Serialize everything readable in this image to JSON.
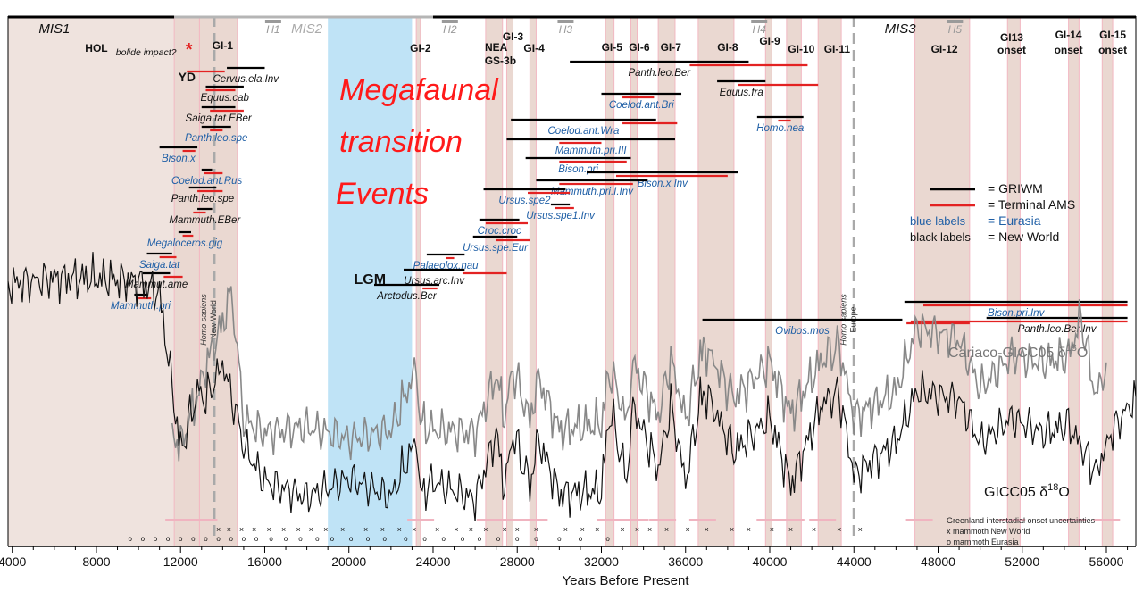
{
  "chart_data": {
    "type": "line",
    "xlabel": "Years Before Present",
    "xlim": [
      3800,
      57400
    ],
    "x_ticks": [
      4000,
      8000,
      12000,
      16000,
      20000,
      24000,
      28000,
      32000,
      36000,
      40000,
      44000,
      48000,
      52000,
      56000
    ],
    "mis_labels": [
      {
        "label": "MIS1",
        "x": 6000
      },
      {
        "label": "MIS2",
        "x": 18000
      },
      {
        "label": "MIS3",
        "x": 46200
      }
    ],
    "mis_boundaries": [
      11700,
      24000
    ],
    "heinrich_events": [
      {
        "label": "H1",
        "x": 16400
      },
      {
        "label": "H2",
        "x": 24800
      },
      {
        "label": "H3",
        "x": 30300
      },
      {
        "label": "H4",
        "x": 39500
      },
      {
        "label": "H5",
        "x": 48800
      }
    ],
    "climate_events": [
      {
        "label": "HOL",
        "x": 8000
      },
      {
        "label": "YD",
        "x": 12300
      },
      {
        "label": "GI-1",
        "x": 14000
      },
      {
        "label": "GI-2",
        "x": 23400
      },
      {
        "label": "NEA",
        "x": 27000
      },
      {
        "label": "GS-3b",
        "x": 27200
      },
      {
        "label": "GI-3",
        "x": 27800
      },
      {
        "label": "GI-4",
        "x": 28800
      },
      {
        "label": "GI-5",
        "x": 32500
      },
      {
        "label": "GI-6",
        "x": 33800
      },
      {
        "label": "GI-7",
        "x": 35300
      },
      {
        "label": "GI-8",
        "x": 38000
      },
      {
        "label": "GI-9",
        "x": 40000
      },
      {
        "label": "GI-10",
        "x": 41500
      },
      {
        "label": "GI-11",
        "x": 43200
      },
      {
        "label": "GI-12",
        "x": 48300
      },
      {
        "label": "GI13",
        "x": 51500
      },
      {
        "label": "onset",
        "x": 51500
      },
      {
        "label": "GI-14",
        "x": 54200
      },
      {
        "label": "onset",
        "x": 54200
      },
      {
        "label": "GI-15",
        "x": 56300
      },
      {
        "label": "onset",
        "x": 56300
      }
    ],
    "interstadials": [
      [
        11700,
        12900
      ],
      [
        12900,
        14700
      ],
      [
        23200,
        23400
      ],
      [
        26500,
        27300
      ],
      [
        27500,
        27800
      ],
      [
        28600,
        28900
      ],
      [
        32200,
        32600
      ],
      [
        33400,
        33700
      ],
      [
        34700,
        35500
      ],
      [
        36600,
        38300
      ],
      [
        39800,
        40100
      ],
      [
        40800,
        41500
      ],
      [
        42300,
        43400
      ],
      [
        46900,
        49500
      ],
      [
        51300,
        51900
      ],
      [
        54200,
        54700
      ],
      [
        55800,
        56300
      ]
    ],
    "lgm": {
      "label": "LGM",
      "range": [
        19000,
        23000
      ]
    },
    "homo_sapiens": [
      {
        "label": "Homo sapiens",
        "sublabel": "New World",
        "x": 13600
      },
      {
        "label": "Homo sapiens",
        "sublabel": "Europe",
        "x": 44000
      }
    ],
    "bolide_label": "bolide impact?",
    "overlay_text": [
      "Megafaunal",
      "transition",
      "Events"
    ],
    "legend": [
      {
        "key": "=",
        "label": "GRIWM",
        "color": "#000000"
      },
      {
        "key": "=",
        "label": "Terminal AMS",
        "color": "#e32222"
      },
      {
        "key": "blue labels",
        "label": "= Eurasia",
        "color": "#1f5fa6"
      },
      {
        "key": "black labels",
        "label": "= New World",
        "color": "#111111"
      }
    ],
    "taxa": [
      {
        "name": "Cervus.ela.Inv",
        "region": "New World",
        "griwm": [
          14200,
          16000
        ],
        "ams": [
          12300,
          14100
        ]
      },
      {
        "name": "Equus.cab",
        "region": "New World",
        "griwm": [
          13200,
          15000
        ],
        "ams": [
          13200,
          14600
        ]
      },
      {
        "name": "Saiga.tat.EBer",
        "region": "New World",
        "griwm": [
          13000,
          14600
        ],
        "ams": [
          13400,
          15000
        ]
      },
      {
        "name": "Panth.leo.spe",
        "region": "Eurasia",
        "griwm": [
          13000,
          14400
        ],
        "ams": [
          13400,
          14000
        ]
      },
      {
        "name": "Bison.x",
        "region": "Eurasia",
        "griwm": [
          11000,
          12800
        ],
        "ams": [
          12100,
          12700
        ]
      },
      {
        "name": "Coelod.ant.Rus",
        "region": "Eurasia",
        "griwm": [
          13000,
          13500
        ],
        "ams": [
          13100,
          14000
        ]
      },
      {
        "name": "Panth.leo.spe",
        "region": "New World",
        "griwm": [
          12400,
          13700
        ],
        "ams": [
          12800,
          14000
        ]
      },
      {
        "name": "Mammuth.EBer",
        "region": "New World",
        "griwm": [
          12800,
          13500
        ],
        "ams": [
          12600,
          13200
        ]
      },
      {
        "name": "Megaloceros.gig",
        "region": "Eurasia",
        "griwm": [
          11900,
          12500
        ],
        "ams": [
          12100,
          12600
        ]
      },
      {
        "name": "Saiga.tat",
        "region": "Eurasia",
        "griwm": [
          10400,
          11600
        ],
        "ams": [
          11000,
          11800
        ]
      },
      {
        "name": "Mammut.ame",
        "region": "New World",
        "griwm": [
          10200,
          11500
        ],
        "ams": [
          11200,
          12100
        ]
      },
      {
        "name": "Mammuth.pri",
        "region": "Eurasia",
        "griwm": [
          9800,
          10400
        ],
        "ams": [
          10000,
          10600
        ]
      },
      {
        "name": "Ovibos.mos",
        "region": "Eurasia",
        "griwm": [
          36800,
          46300
        ],
        "ams": [
          46500,
          49500
        ]
      },
      {
        "name": "Panth.leo.Ber",
        "region": "New World",
        "griwm": [
          30500,
          39000
        ],
        "ams": [
          36200,
          41800
        ]
      },
      {
        "name": "Equus.fra",
        "region": "New World",
        "griwm": [
          37500,
          39800
        ],
        "ams": [
          38500,
          42300
        ]
      },
      {
        "name": "Coelod.ant.Bri",
        "region": "Eurasia",
        "griwm": [
          32000,
          35800
        ],
        "ams": [
          33000,
          34500
        ]
      },
      {
        "name": "Homo.nea",
        "region": "Eurasia",
        "griwm": [
          39400,
          41600
        ],
        "ams": [
          40400,
          41000
        ]
      },
      {
        "name": "Coelod.ant.Wra",
        "region": "Eurasia",
        "griwm": [
          27700,
          34600
        ],
        "ams": [
          33000,
          35600
        ]
      },
      {
        "name": "Mammuth.pri.III",
        "region": "Eurasia",
        "griwm": [
          27500,
          35500
        ],
        "ams": [
          30000,
          32000
        ]
      },
      {
        "name": "Bison.pri",
        "region": "Eurasia",
        "griwm": [
          28400,
          33400
        ],
        "ams": [
          30000,
          33200
        ]
      },
      {
        "name": "Bison.x.Inv",
        "region": "Eurasia",
        "griwm": [
          31300,
          38500
        ],
        "ams": [
          32700,
          38000
        ]
      },
      {
        "name": "Mammuth.pri.I.Inv",
        "region": "Eurasia",
        "griwm": [
          28900,
          34200
        ],
        "ams": [
          30000,
          33500
        ]
      },
      {
        "name": "Ursus.spe2",
        "region": "Eurasia",
        "griwm": [
          26400,
          30300
        ],
        "ams": [
          28500,
          30500
        ]
      },
      {
        "name": "Ursus.spe1.Inv",
        "region": "Eurasia",
        "griwm": [
          29600,
          30500
        ],
        "ams": [
          29800,
          30700
        ]
      },
      {
        "name": "Croc.croc",
        "region": "Eurasia",
        "griwm": [
          26200,
          28100
        ],
        "ams": [
          26500,
          28500
        ]
      },
      {
        "name": "Ursus.spe.Eur",
        "region": "Eurasia",
        "griwm": [
          25900,
          28000
        ],
        "ams": [
          27000,
          28600
        ]
      },
      {
        "name": "Palaeolox.nau",
        "region": "Eurasia",
        "griwm": [
          23700,
          25500
        ],
        "ams": [
          24600,
          25000
        ]
      },
      {
        "name": "Ursus.arc.Inv",
        "region": "New World",
        "griwm": [
          22600,
          25500
        ],
        "ams": [
          25400,
          27500
        ]
      },
      {
        "name": "Arctodus.Ber",
        "region": "New World",
        "griwm": [
          21200,
          24300
        ],
        "ams": [
          23500,
          24200
        ]
      },
      {
        "name": "Bison.pri.Inv",
        "region": "Eurasia",
        "griwm": [
          46400,
          57000
        ],
        "ams": [
          47300,
          57000
        ]
      },
      {
        "name": "Panth.leo.Ber.Inv",
        "region": "New World",
        "griwm": [
          50300,
          57000
        ],
        "ams": [
          46700,
          57000
        ]
      }
    ],
    "series": [
      {
        "name": "Cariaco-GICC05 δ18O",
        "color": "#888888",
        "x": [
          11600,
          12000,
          12400,
          12800,
          13200,
          13600,
          14000,
          14400,
          14700,
          15000,
          16000,
          18000,
          20000,
          22000,
          23200,
          23400,
          24000,
          26000,
          27000,
          27400,
          27800,
          28600,
          29000,
          30000,
          32000,
          32400,
          33200,
          33500,
          34700,
          35300,
          36000,
          36700,
          37000,
          38300,
          40000,
          41000,
          42500,
          43300,
          44000,
          46000,
          47000,
          49000,
          50000,
          51500,
          53000,
          54200,
          54800,
          55500,
          56000
        ],
        "value": [
          -40.6,
          -41.0,
          -40.2,
          -39.5,
          -38.5,
          -37.8,
          -37.2,
          -36.2,
          -38.0,
          -40.2,
          -40.6,
          -40.4,
          -40.8,
          -40.5,
          -38.6,
          -40.3,
          -40.5,
          -40.6,
          -38.8,
          -40.1,
          -38.6,
          -40.2,
          -38.9,
          -40.5,
          -40.3,
          -38.6,
          -40.2,
          -38.4,
          -40.1,
          -38.3,
          -40.2,
          -38.2,
          -38.0,
          -39.5,
          -38.4,
          -40.0,
          -38.3,
          -37.9,
          -40.1,
          -39.3,
          -37.3,
          -37.7,
          -39.2,
          -38.2,
          -38.4,
          -38.2,
          -37.0,
          -39.5,
          -38.4
        ]
      },
      {
        "name": "GICC05 δ18O",
        "color": "#111111",
        "x": [
          3800,
          6000,
          8000,
          10000,
          11000,
          11600,
          12000,
          12800,
          13200,
          14000,
          14700,
          15000,
          16000,
          18000,
          20000,
          22000,
          23200,
          23400,
          24000,
          26000,
          27000,
          27400,
          27800,
          28600,
          29000,
          30000,
          32000,
          32400,
          33200,
          33500,
          34700,
          35300,
          36000,
          36700,
          37000,
          38300,
          40000,
          41000,
          42500,
          43300,
          44000,
          46000,
          47000,
          49000,
          50000,
          51500,
          53000,
          54200,
          55500,
          56300,
          57400
        ],
        "value": [
          -35.1,
          -34.9,
          -34.9,
          -35.0,
          -35.4,
          -38.5,
          -40.6,
          -38.6,
          -38.9,
          -37.7,
          -39.5,
          -40.4,
          -41.6,
          -42.1,
          -41.5,
          -42.1,
          -40.2,
          -42.0,
          -41.6,
          -42.2,
          -40.0,
          -41.8,
          -40.0,
          -41.7,
          -40.2,
          -42.0,
          -41.9,
          -39.2,
          -41.5,
          -39.1,
          -41.2,
          -39.1,
          -41.6,
          -38.9,
          -38.7,
          -40.6,
          -39.5,
          -41.7,
          -39.0,
          -38.7,
          -41.4,
          -40.3,
          -38.6,
          -38.9,
          -40.3,
          -39.5,
          -40.0,
          -39.7,
          -41.3,
          -39.9,
          -38.8
        ]
      }
    ],
    "series_labels": [
      {
        "text": "Cariaco-GICC05 δ",
        "sup": "18",
        "tail": "O"
      },
      {
        "text": "GICC05 δ",
        "sup": "18",
        "tail": "O"
      }
    ],
    "uncertainty_label": "Greenland interstadial onset uncertainties",
    "mammoth_markers": [
      {
        "label": "x mammoth New World",
        "symbol": "×",
        "x": [
          13800,
          14300,
          14900,
          15500,
          16200,
          16900,
          17600,
          18200,
          18900,
          19700,
          20800,
          21600,
          22400,
          23100,
          24200,
          25100,
          25800,
          26500,
          27400,
          28000,
          28900,
          30300,
          31100,
          31800,
          33000,
          33700,
          34300,
          35100,
          36100,
          37000,
          38200,
          39000,
          40100,
          41000,
          42100,
          43300,
          44300
        ]
      },
      {
        "label": "o mammoth Eurasia",
        "symbol": "o",
        "x": [
          9600,
          10200,
          10800,
          11400,
          12000,
          12600,
          13200,
          13800,
          14400,
          15000,
          15600,
          16300,
          17000,
          17700,
          18500,
          19200,
          20100,
          20900,
          21700,
          22700,
          23600,
          24500,
          25400,
          26200,
          27100,
          28000,
          28900,
          30000,
          31000,
          32300
        ]
      }
    ]
  }
}
